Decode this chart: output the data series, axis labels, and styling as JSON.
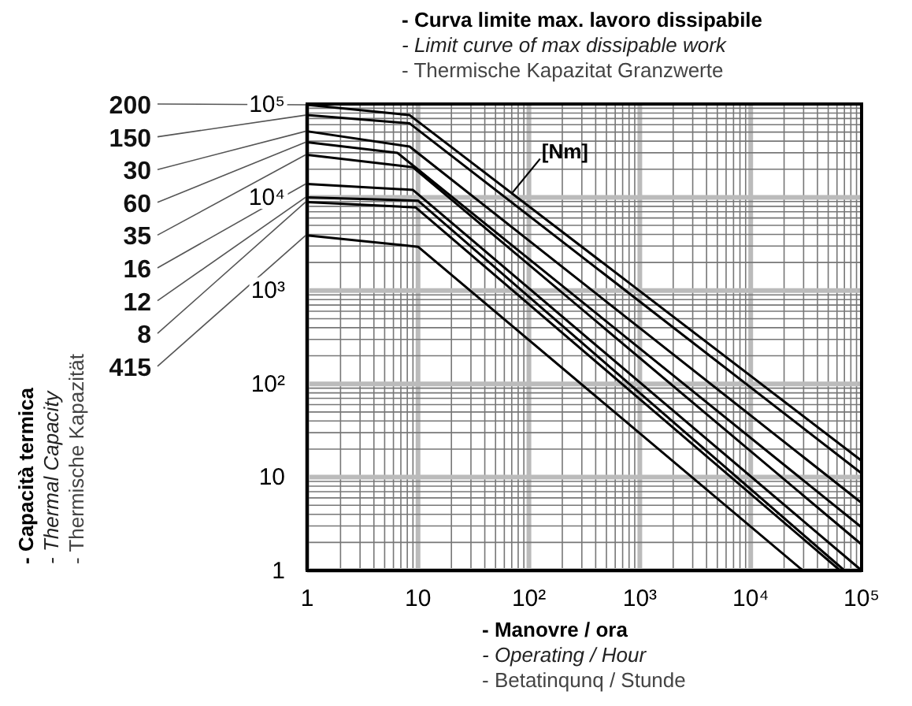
{
  "chart_data": {
    "type": "line",
    "title": "- Curva limite max. lavoro dissipabile\n- Limit curve of max dissipable work\n- Thermische Kapazitat Granzwerte",
    "xlabel": "- Manovre / ora\n- Operating / Hour\n- Betatinqunq / Stunde",
    "log": "xy",
    "grid": true,
    "xlim": [
      1,
      100000
    ],
    "ylim": [
      1,
      100000
    ],
    "xticks": [
      1,
      10,
      {
        "value": 100,
        "label": "10²"
      },
      {
        "value": 1000,
        "label": "10³"
      },
      {
        "value": 10000,
        "label": "10⁴"
      },
      {
        "value": 100000,
        "label": "10⁵"
      }
    ],
    "yticks": [
      1,
      10,
      {
        "value": 100,
        "label": "10²"
      },
      {
        "value": 1000,
        "label": "10³"
      },
      {
        "value": 10000,
        "label": "10⁴"
      },
      {
        "value": 100000,
        "label": "10⁵"
      }
    ],
    "annotations": [
      {
        "text": "[Nm]",
        "x": 70,
        "y": 11000
      },
      "- Capacità termica\n- Thermal Capacity\n- Thermische Kapazität"
    ],
    "series": [
      {
        "name": "200",
        "color": "#000000",
        "x": [
          1,
          8.4,
          100000
        ],
        "values": [
          98000,
          76000,
          15
        ]
      },
      {
        "name": "150",
        "color": "#000000",
        "x": [
          1,
          8.4,
          100000
        ],
        "values": [
          76000,
          62000,
          11
        ]
      },
      {
        "name": "30",
        "color": "#000000",
        "x": [
          1,
          8.4,
          100000
        ],
        "values": [
          51000,
          35000,
          5.3
        ]
      },
      {
        "name": "60",
        "color": "#000000",
        "x": [
          1,
          6.5,
          100000
        ],
        "values": [
          39000,
          30000,
          2.9
        ]
      },
      {
        "name": "35",
        "color": "#000000",
        "x": [
          1,
          9,
          100000
        ],
        "values": [
          28500,
          21000,
          1.9
        ]
      },
      {
        "name": "16",
        "color": "#000000",
        "x": [
          1,
          9,
          100000
        ],
        "values": [
          13900,
          12000,
          1
        ]
      },
      {
        "name": "12",
        "color": "#000000",
        "x": [
          1,
          10,
          70000
        ],
        "values": [
          10000,
          9200,
          1
        ]
      },
      {
        "name": "8",
        "color": "#000000",
        "x": [
          1,
          9.5,
          64000
        ],
        "values": [
          8900,
          7800,
          1
        ]
      },
      {
        "name": "415",
        "color": "#000000",
        "x": [
          1,
          10,
          29500
        ],
        "values": [
          3900,
          2950,
          1
        ]
      }
    ]
  }
}
